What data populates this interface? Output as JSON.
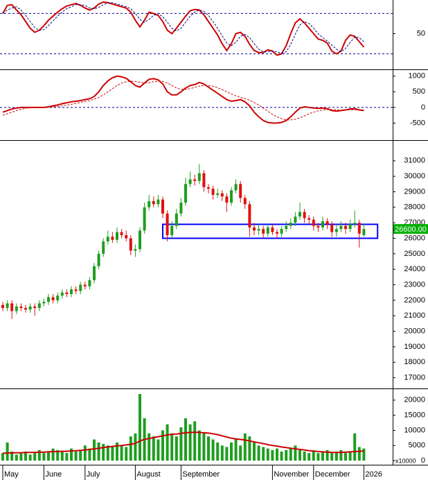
{
  "chart_data": [
    {
      "type": "line",
      "ylim": [
        0,
        100
      ],
      "yticks": [
        50
      ],
      "levels": [
        20,
        80
      ],
      "level_color": "#00008b",
      "series": [
        {
          "color": "#cc0000",
          "style": "solid",
          "values": [
            80,
            92,
            93,
            85,
            78,
            68,
            58,
            52,
            55,
            62,
            70,
            76,
            82,
            87,
            91,
            93,
            95,
            92,
            88,
            85,
            88,
            94,
            97,
            96,
            94,
            92,
            90,
            88,
            82,
            70,
            60,
            70,
            82,
            80,
            77,
            68,
            55,
            50,
            58,
            67,
            76,
            84,
            86,
            85,
            78,
            68,
            58,
            48,
            35,
            25,
            35,
            50,
            52,
            46,
            34,
            25,
            22,
            22,
            26,
            24,
            18,
            20,
            32,
            50,
            66,
            72,
            66,
            58,
            50,
            42,
            40,
            36,
            24,
            20,
            24,
            40,
            48,
            46,
            38,
            30
          ]
        },
        {
          "color": "#000080",
          "style": "dashed",
          "values": [
            80,
            85,
            88,
            90,
            85,
            77,
            68,
            59,
            55,
            56,
            62,
            69,
            76,
            82,
            87,
            90,
            93,
            93,
            92,
            88,
            87,
            89,
            93,
            96,
            96,
            94,
            92,
            90,
            87,
            80,
            71,
            67,
            71,
            77,
            80,
            75,
            67,
            58,
            54,
            58,
            67,
            76,
            82,
            85,
            83,
            77,
            68,
            58,
            47,
            36,
            32,
            37,
            46,
            49,
            44,
            35,
            27,
            23,
            23,
            24,
            23,
            21,
            23,
            34,
            49,
            63,
            68,
            65,
            58,
            50,
            44,
            39,
            33,
            27,
            23,
            28,
            37,
            45,
            44,
            38
          ]
        }
      ]
    },
    {
      "type": "line",
      "ylim": [
        -1000,
        1150
      ],
      "yticks": [
        1000,
        500,
        0,
        -500
      ],
      "levels": [
        0
      ],
      "level_color": "#00008b",
      "series": [
        {
          "color": "#cc0000",
          "style": "solid",
          "values": [
            -150,
            -100,
            -50,
            -20,
            0,
            0,
            0,
            0,
            0,
            0,
            20,
            50,
            80,
            120,
            150,
            180,
            200,
            220,
            250,
            280,
            350,
            500,
            700,
            850,
            950,
            1000,
            980,
            930,
            820,
            700,
            650,
            780,
            900,
            920,
            880,
            750,
            500,
            400,
            400,
            500,
            620,
            700,
            730,
            800,
            750,
            650,
            550,
            450,
            350,
            250,
            200,
            220,
            250,
            180,
            50,
            -150,
            -300,
            -420,
            -480,
            -500,
            -500,
            -480,
            -420,
            -300,
            -150,
            -20,
            20,
            0,
            -20,
            -30,
            -20,
            -40,
            -100,
            -120,
            -100,
            -80,
            -50,
            -40,
            -80,
            -100
          ]
        },
        {
          "color": "#cc0000",
          "style": "dashed",
          "values": [
            -250,
            -200,
            -150,
            -100,
            -60,
            -30,
            -10,
            0,
            0,
            0,
            5,
            15,
            30,
            50,
            75,
            100,
            130,
            160,
            190,
            220,
            260,
            320,
            400,
            500,
            600,
            700,
            780,
            820,
            840,
            830,
            800,
            780,
            790,
            820,
            840,
            830,
            780,
            700,
            620,
            580,
            580,
            600,
            640,
            680,
            700,
            700,
            680,
            630,
            570,
            500,
            430,
            370,
            320,
            280,
            230,
            160,
            80,
            -20,
            -120,
            -220,
            -300,
            -360,
            -400,
            -400,
            -380,
            -330,
            -270,
            -200,
            -150,
            -110,
            -80,
            -70,
            -70,
            -80,
            -85,
            -85,
            -80,
            -75,
            -75,
            -80
          ]
        }
      ]
    },
    {
      "type": "candlestick",
      "ylim": [
        16400,
        32200
      ],
      "yticks": [
        17000,
        18000,
        19000,
        20000,
        21000,
        22000,
        23000,
        24000,
        25000,
        26000,
        27000,
        28000,
        29000,
        30000,
        31000
      ],
      "up_color": "#1f9e1f",
      "down_color": "#e01010",
      "open": [
        21700,
        21500,
        21800,
        21300,
        21600,
        21500,
        21400,
        21600,
        21500,
        21800,
        21900,
        22200,
        22000,
        22300,
        22500,
        22400,
        22700,
        22600,
        23000,
        22900,
        23300,
        24200,
        25000,
        25800,
        26100,
        25900,
        26400,
        26200,
        26000,
        25200,
        25300,
        26500,
        28000,
        28400,
        28200,
        28500,
        27600,
        26200,
        26800,
        27600,
        28300,
        29500,
        29800,
        29700,
        30200,
        29300,
        29200,
        28800,
        28900,
        28700,
        28300,
        29100,
        29500,
        28600,
        28200,
        26700,
        26500,
        26600,
        26300,
        26700,
        26400,
        26300,
        26600,
        26800,
        27000,
        27400,
        27700,
        27300,
        27200,
        26800,
        26700,
        27100,
        26900,
        26400,
        26600,
        26800,
        26600,
        26900,
        27000,
        26200
      ],
      "high": [
        21900,
        22000,
        22000,
        21800,
        21800,
        21700,
        21800,
        21800,
        22000,
        22100,
        22400,
        22400,
        22500,
        22700,
        22700,
        22900,
        22900,
        23200,
        23200,
        23500,
        24400,
        25200,
        26000,
        26500,
        26400,
        26700,
        26600,
        26500,
        26200,
        25600,
        26700,
        28300,
        28800,
        28700,
        28800,
        28700,
        27800,
        27100,
        27900,
        28600,
        29900,
        30300,
        30100,
        30800,
        30400,
        29500,
        29400,
        29200,
        29100,
        28900,
        29300,
        29800,
        29700,
        28800,
        28400,
        27000,
        26900,
        26800,
        26900,
        26900,
        26600,
        26800,
        27100,
        27300,
        27700,
        28300,
        27900,
        27500,
        27400,
        27000,
        27400,
        27300,
        27100,
        26900,
        27100,
        27000,
        27200,
        27800,
        27200,
        26900
      ],
      "low": [
        21300,
        21300,
        20800,
        21100,
        21300,
        21200,
        21200,
        21000,
        21300,
        21600,
        21700,
        21800,
        21800,
        22100,
        22200,
        22200,
        22400,
        22400,
        22700,
        22700,
        23100,
        24000,
        24800,
        25600,
        25700,
        25700,
        26000,
        25800,
        24900,
        24800,
        25100,
        26300,
        27800,
        28000,
        28000,
        27300,
        25800,
        26000,
        26600,
        27400,
        28100,
        29300,
        29400,
        29500,
        29000,
        28900,
        28500,
        28600,
        28400,
        27700,
        28100,
        28900,
        28300,
        27900,
        26100,
        26200,
        26200,
        26000,
        26100,
        26200,
        26000,
        26100,
        26400,
        26600,
        26800,
        27200,
        27000,
        26900,
        26500,
        26400,
        26500,
        26600,
        26100,
        26100,
        26400,
        26300,
        26400,
        26700,
        25400,
        26100
      ],
      "close": [
        21500,
        21800,
        21300,
        21600,
        21500,
        21400,
        21600,
        21500,
        21800,
        21900,
        22200,
        22000,
        22300,
        22500,
        22400,
        22700,
        22600,
        23000,
        22900,
        23300,
        24200,
        25000,
        25800,
        26100,
        25900,
        26400,
        26200,
        26000,
        25200,
        25300,
        26500,
        28000,
        28400,
        28200,
        28500,
        27600,
        26200,
        26800,
        27600,
        28300,
        29500,
        29800,
        29700,
        30200,
        29300,
        29200,
        28800,
        28900,
        28700,
        28300,
        29100,
        29500,
        28600,
        28200,
        26700,
        26500,
        26600,
        26300,
        26700,
        26400,
        26300,
        26600,
        26800,
        27000,
        27400,
        27700,
        27300,
        27200,
        26800,
        26700,
        27100,
        26900,
        26400,
        26600,
        26800,
        26600,
        26900,
        27000,
        26300,
        26600
      ],
      "box": {
        "ylim": [
          26000,
          26900
        ],
        "x": [
          35,
          82
        ],
        "color": "#0000ff"
      },
      "last_price": {
        "value": 26600,
        "label": "26600.00",
        "color": "#00b000"
      }
    },
    {
      "type": "bar",
      "ylim": [
        -900,
        23400
      ],
      "yticks": [
        0,
        5000,
        10000,
        15000,
        20000
      ],
      "unit": "x10000",
      "color": "#1f9e1f",
      "values": [
        2500,
        6000,
        3000,
        2000,
        2500,
        3000,
        2000,
        2500,
        3500,
        2500,
        3000,
        4000,
        3500,
        3000,
        2500,
        4000,
        3000,
        3500,
        5000,
        4000,
        7000,
        6000,
        5500,
        5000,
        4500,
        6000,
        5000,
        4500,
        8000,
        9000,
        22000,
        14000,
        9000,
        8000,
        7000,
        10000,
        12000,
        9000,
        8000,
        11000,
        14000,
        12000,
        13000,
        10000,
        9000,
        8000,
        7000,
        6000,
        5000,
        4500,
        6000,
        7000,
        5000,
        9000,
        8000,
        6000,
        5000,
        4500,
        4000,
        3500,
        4000,
        3000,
        3500,
        4000,
        5000,
        3500,
        3000,
        2500,
        3000,
        2500,
        3000,
        3500,
        2500,
        3000,
        3500,
        2500,
        3000,
        9000,
        4500,
        4000
      ],
      "series": [
        {
          "color": "#cc0000",
          "style": "solid",
          "values": [
            2500,
            2500,
            2600,
            2600,
            2600,
            2700,
            2700,
            2700,
            2800,
            2800,
            2900,
            3000,
            3000,
            3100,
            3100,
            3200,
            3300,
            3400,
            3500,
            3700,
            3900,
            4100,
            4300,
            4500,
            4700,
            4900,
            5000,
            5200,
            5400,
            5700,
            6500,
            7000,
            7300,
            7600,
            7900,
            8200,
            8500,
            8700,
            8800,
            9000,
            9200,
            9300,
            9400,
            9300,
            9200,
            9100,
            8900,
            8600,
            8200,
            7800,
            7400,
            7200,
            7000,
            6800,
            6500,
            6200,
            5900,
            5600,
            5300,
            5000,
            4800,
            4500,
            4300,
            4100,
            3900,
            3700,
            3500,
            3300,
            3200,
            3000,
            2900,
            2800,
            2700,
            2700,
            2700,
            2800,
            2900,
            3000,
            3100,
            3200
          ]
        }
      ],
      "xticks": [
        {
          "value": 0,
          "label": "May"
        },
        {
          "value": 9,
          "label": "June"
        },
        {
          "value": 18,
          "label": "July"
        },
        {
          "value": 29,
          "label": "August"
        },
        {
          "value": 39,
          "label": "September"
        },
        {
          "value": 59,
          "label": "November"
        },
        {
          "value": 68,
          "label": "December"
        },
        {
          "value": 79,
          "label": "2026"
        }
      ]
    }
  ]
}
